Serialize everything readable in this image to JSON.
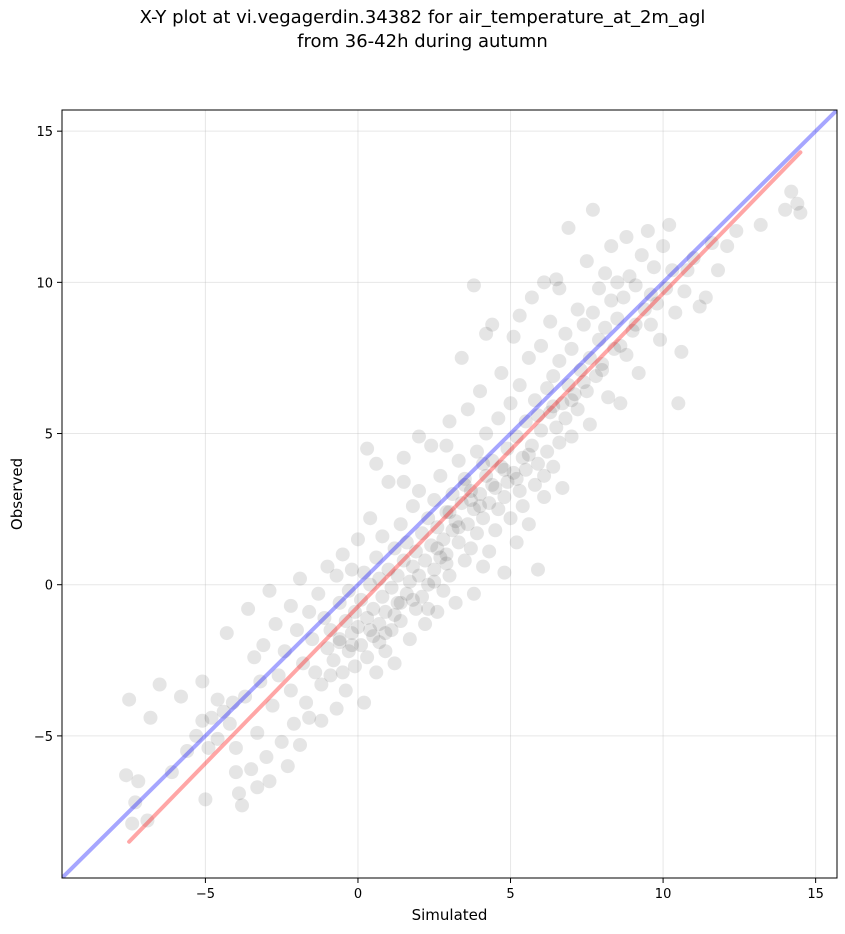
{
  "chart_data": {
    "type": "scatter",
    "title_line1": "X-Y plot at vi.vegagerdin.34382 for air_temperature_at_2m_agl",
    "title_line2": "from 36-42h during autumn",
    "xlabel": "Simulated",
    "ylabel": "Observed",
    "xlim": [
      -9.7,
      15.7
    ],
    "ylim": [
      -9.7,
      15.7
    ],
    "xticks": [
      -5,
      0,
      5,
      10,
      15
    ],
    "yticks": [
      -5,
      0,
      5,
      10,
      15
    ],
    "xtick_labels": [
      "−5",
      "0",
      "5",
      "10",
      "15"
    ],
    "ytick_labels": [
      "−5",
      "0",
      "5",
      "10",
      "15"
    ],
    "grid": true,
    "identity_line": {
      "color": "#0000ff",
      "opacity": 0.35,
      "x": [
        -9.7,
        15.7
      ],
      "y": [
        -9.7,
        15.7
      ]
    },
    "fit_line": {
      "color": "#ff0000",
      "opacity": 0.35,
      "x": [
        -7.5,
        14.5
      ],
      "y": [
        -8.5,
        14.3
      ]
    },
    "point_style": {
      "color": "#000000",
      "opacity": 0.1
    },
    "points": [
      [
        -7.6,
        -6.3
      ],
      [
        -7.5,
        -3.8
      ],
      [
        -7.2,
        -6.5
      ],
      [
        -7.3,
        -7.2
      ],
      [
        -7.4,
        -7.9
      ],
      [
        -6.9,
        -7.8
      ],
      [
        -6.8,
        -4.4
      ],
      [
        -6.5,
        -3.3
      ],
      [
        -6.1,
        -6.2
      ],
      [
        -5.8,
        -3.7
      ],
      [
        -5.6,
        -5.5
      ],
      [
        -5.3,
        -5.0
      ],
      [
        -5.1,
        -4.5
      ],
      [
        -5.1,
        -3.2
      ],
      [
        -5.0,
        -7.1
      ],
      [
        -4.9,
        -5.4
      ],
      [
        -4.8,
        -4.4
      ],
      [
        -4.6,
        -3.8
      ],
      [
        -4.6,
        -5.1
      ],
      [
        -4.4,
        -4.2
      ],
      [
        -4.3,
        -1.6
      ],
      [
        -4.2,
        -4.6
      ],
      [
        -4.1,
        -3.9
      ],
      [
        -4.0,
        -5.4
      ],
      [
        -4.0,
        -6.2
      ],
      [
        -3.9,
        -6.9
      ],
      [
        -3.8,
        -7.3
      ],
      [
        -3.7,
        -3.7
      ],
      [
        -3.6,
        -0.8
      ],
      [
        -3.5,
        -6.1
      ],
      [
        -3.4,
        -2.4
      ],
      [
        -3.3,
        -4.9
      ],
      [
        -3.3,
        -6.7
      ],
      [
        -3.2,
        -3.2
      ],
      [
        -3.1,
        -2.0
      ],
      [
        -3.0,
        -5.7
      ],
      [
        -2.9,
        -0.2
      ],
      [
        -2.9,
        -6.5
      ],
      [
        -2.8,
        -4.0
      ],
      [
        -2.7,
        -1.3
      ],
      [
        -2.6,
        -3.0
      ],
      [
        -2.5,
        -5.2
      ],
      [
        -2.4,
        -2.2
      ],
      [
        -2.3,
        -6.0
      ],
      [
        -2.2,
        -0.7
      ],
      [
        -2.2,
        -3.5
      ],
      [
        -2.1,
        -4.6
      ],
      [
        -2.0,
        -1.5
      ],
      [
        -1.9,
        0.2
      ],
      [
        -1.9,
        -5.3
      ],
      [
        -1.8,
        -2.6
      ],
      [
        -1.7,
        -3.9
      ],
      [
        -1.6,
        -0.9
      ],
      [
        -1.6,
        -4.4
      ],
      [
        -1.5,
        -1.8
      ],
      [
        -1.4,
        -2.9
      ],
      [
        -1.3,
        -0.3
      ],
      [
        -1.2,
        -3.3
      ],
      [
        -1.2,
        -4.5
      ],
      [
        -1.1,
        -1.1
      ],
      [
        -1.0,
        -2.1
      ],
      [
        -1.0,
        0.6
      ],
      [
        -0.9,
        -3.0
      ],
      [
        -0.9,
        -1.5
      ],
      [
        -0.8,
        -2.5
      ],
      [
        -0.7,
        0.3
      ],
      [
        -0.7,
        -4.1
      ],
      [
        -0.6,
        -1.8
      ],
      [
        -0.6,
        -0.6
      ],
      [
        -0.5,
        -2.9
      ],
      [
        -0.5,
        1.0
      ],
      [
        -0.4,
        -1.2
      ],
      [
        -0.4,
        -3.5
      ],
      [
        -0.3,
        -0.2
      ],
      [
        -0.3,
        -2.2
      ],
      [
        -0.2,
        -1.6
      ],
      [
        -0.2,
        0.5
      ],
      [
        -0.1,
        -2.7
      ],
      [
        -0.1,
        -0.9
      ],
      [
        0.0,
        -1.4
      ],
      [
        0.0,
        1.5
      ],
      [
        0.1,
        -2.0
      ],
      [
        0.1,
        -0.5
      ],
      [
        0.2,
        -3.9
      ],
      [
        0.2,
        0.4
      ],
      [
        0.3,
        -1.1
      ],
      [
        0.3,
        -2.4
      ],
      [
        0.4,
        0.0
      ],
      [
        0.4,
        2.2
      ],
      [
        0.5,
        -1.7
      ],
      [
        0.5,
        -0.8
      ],
      [
        0.6,
        -2.9
      ],
      [
        0.6,
        0.9
      ],
      [
        0.7,
        -1.3
      ],
      [
        0.7,
        0.2
      ],
      [
        0.8,
        -0.4
      ],
      [
        0.8,
        1.6
      ],
      [
        0.9,
        -2.2
      ],
      [
        0.9,
        -0.9
      ],
      [
        1.0,
        0.5
      ],
      [
        1.0,
        3.4
      ],
      [
        1.1,
        -1.5
      ],
      [
        1.1,
        -0.1
      ],
      [
        1.2,
        1.2
      ],
      [
        1.2,
        -2.6
      ],
      [
        1.3,
        0.3
      ],
      [
        1.3,
        -0.6
      ],
      [
        1.4,
        2.0
      ],
      [
        1.4,
        -1.2
      ],
      [
        1.5,
        0.8
      ],
      [
        1.5,
        4.2
      ],
      [
        1.6,
        -0.3
      ],
      [
        1.6,
        1.4
      ],
      [
        1.7,
        -1.8
      ],
      [
        1.7,
        0.1
      ],
      [
        1.8,
        2.6
      ],
      [
        1.8,
        0.6
      ],
      [
        1.9,
        -0.8
      ],
      [
        1.9,
        1.1
      ],
      [
        2.0,
        0.3
      ],
      [
        2.0,
        3.1
      ],
      [
        2.1,
        -0.4
      ],
      [
        2.1,
        1.7
      ],
      [
        2.2,
        0.8
      ],
      [
        2.2,
        -1.3
      ],
      [
        2.3,
        2.2
      ],
      [
        2.3,
        0.0
      ],
      [
        2.4,
        1.3
      ],
      [
        2.4,
        4.6
      ],
      [
        2.5,
        0.5
      ],
      [
        2.5,
        2.8
      ],
      [
        2.6,
        -0.9
      ],
      [
        2.6,
        1.9
      ],
      [
        2.7,
        0.9
      ],
      [
        2.7,
        3.6
      ],
      [
        2.8,
        1.5
      ],
      [
        2.8,
        -0.2
      ],
      [
        2.9,
        2.4
      ],
      [
        2.9,
        1.0
      ],
      [
        3.0,
        5.4
      ],
      [
        3.0,
        0.3
      ],
      [
        3.1,
        1.8
      ],
      [
        3.1,
        3.0
      ],
      [
        3.2,
        2.1
      ],
      [
        3.2,
        -0.6
      ],
      [
        3.3,
        4.1
      ],
      [
        3.3,
        1.4
      ],
      [
        3.4,
        2.7
      ],
      [
        3.4,
        7.5
      ],
      [
        3.5,
        0.8
      ],
      [
        3.5,
        3.5
      ],
      [
        3.6,
        2.0
      ],
      [
        3.6,
        5.8
      ],
      [
        3.7,
        1.2
      ],
      [
        3.7,
        3.1
      ],
      [
        3.8,
        2.5
      ],
      [
        3.8,
        -0.3
      ],
      [
        3.9,
        4.4
      ],
      [
        3.9,
        1.7
      ],
      [
        4.0,
        3.0
      ],
      [
        4.0,
        6.4
      ],
      [
        4.1,
        2.2
      ],
      [
        4.1,
        0.6
      ],
      [
        4.2,
        3.6
      ],
      [
        4.2,
        5.0
      ],
      [
        4.3,
        2.7
      ],
      [
        4.3,
        1.1
      ],
      [
        4.4,
        4.1
      ],
      [
        4.4,
        8.6
      ],
      [
        4.5,
        3.2
      ],
      [
        4.5,
        1.8
      ],
      [
        4.6,
        5.5
      ],
      [
        4.6,
        2.5
      ],
      [
        4.7,
        3.9
      ],
      [
        4.7,
        7.0
      ],
      [
        4.8,
        2.9
      ],
      [
        4.8,
        0.4
      ],
      [
        4.9,
        4.5
      ],
      [
        4.9,
        3.4
      ],
      [
        5.0,
        6.0
      ],
      [
        5.0,
        2.2
      ],
      [
        5.1,
        3.7
      ],
      [
        5.1,
        8.2
      ],
      [
        5.2,
        4.9
      ],
      [
        5.2,
        1.4
      ],
      [
        5.3,
        3.1
      ],
      [
        5.3,
        6.6
      ],
      [
        5.4,
        4.2
      ],
      [
        5.4,
        2.6
      ],
      [
        5.5,
        5.4
      ],
      [
        5.5,
        3.8
      ],
      [
        5.6,
        7.5
      ],
      [
        5.6,
        2.0
      ],
      [
        5.7,
        4.6
      ],
      [
        5.7,
        9.5
      ],
      [
        5.8,
        3.3
      ],
      [
        5.8,
        6.1
      ],
      [
        5.9,
        4.0
      ],
      [
        5.9,
        0.5
      ],
      [
        6.0,
        5.1
      ],
      [
        6.0,
        7.9
      ],
      [
        6.1,
        3.6
      ],
      [
        6.1,
        2.9
      ],
      [
        6.2,
        6.5
      ],
      [
        6.2,
        4.4
      ],
      [
        6.3,
        5.7
      ],
      [
        6.3,
        8.7
      ],
      [
        6.4,
        3.9
      ],
      [
        6.4,
        6.9
      ],
      [
        6.5,
        5.2
      ],
      [
        6.5,
        10.1
      ],
      [
        6.6,
        4.7
      ],
      [
        6.6,
        7.4
      ],
      [
        6.7,
        6.0
      ],
      [
        6.7,
        3.2
      ],
      [
        6.8,
        8.3
      ],
      [
        6.8,
        5.5
      ],
      [
        6.9,
        6.6
      ],
      [
        6.9,
        11.8
      ],
      [
        7.0,
        4.9
      ],
      [
        7.0,
        7.8
      ],
      [
        7.1,
        6.3
      ],
      [
        7.2,
        9.1
      ],
      [
        7.2,
        5.8
      ],
      [
        7.3,
        7.1
      ],
      [
        7.4,
        8.6
      ],
      [
        7.4,
        6.7
      ],
      [
        7.5,
        10.7
      ],
      [
        7.6,
        7.5
      ],
      [
        7.6,
        5.3
      ],
      [
        7.7,
        9.0
      ],
      [
        7.7,
        12.4
      ],
      [
        7.8,
        6.9
      ],
      [
        7.9,
        8.1
      ],
      [
        7.9,
        9.8
      ],
      [
        8.0,
        7.3
      ],
      [
        8.1,
        10.3
      ],
      [
        8.1,
        8.5
      ],
      [
        8.2,
        6.2
      ],
      [
        8.3,
        9.4
      ],
      [
        8.3,
        11.2
      ],
      [
        8.4,
        7.8
      ],
      [
        8.5,
        10.0
      ],
      [
        8.5,
        8.8
      ],
      [
        8.6,
        6.0
      ],
      [
        8.7,
        9.5
      ],
      [
        8.8,
        11.5
      ],
      [
        8.8,
        7.6
      ],
      [
        8.9,
        10.2
      ],
      [
        9.0,
        8.4
      ],
      [
        9.1,
        9.9
      ],
      [
        9.2,
        7.0
      ],
      [
        9.3,
        10.9
      ],
      [
        9.4,
        9.1
      ],
      [
        9.5,
        11.7
      ],
      [
        9.6,
        8.6
      ],
      [
        9.7,
        10.5
      ],
      [
        9.8,
        9.3
      ],
      [
        9.9,
        8.1
      ],
      [
        10.0,
        11.2
      ],
      [
        10.1,
        9.8
      ],
      [
        10.2,
        11.9
      ],
      [
        10.3,
        10.4
      ],
      [
        10.4,
        9.0
      ],
      [
        10.5,
        6.0
      ],
      [
        10.6,
        7.7
      ],
      [
        10.7,
        9.7
      ],
      [
        10.8,
        10.4
      ],
      [
        11.0,
        10.8
      ],
      [
        11.2,
        9.2
      ],
      [
        11.4,
        9.5
      ],
      [
        11.6,
        11.3
      ],
      [
        11.8,
        10.4
      ],
      [
        12.1,
        11.2
      ],
      [
        12.4,
        11.7
      ],
      [
        13.2,
        11.9
      ],
      [
        14.0,
        12.4
      ],
      [
        14.2,
        13.0
      ],
      [
        14.4,
        12.6
      ],
      [
        14.5,
        12.3
      ],
      [
        0.3,
        4.5
      ],
      [
        0.6,
        4.0
      ],
      [
        1.5,
        3.4
      ],
      [
        2.0,
        4.9
      ],
      [
        2.9,
        4.6
      ],
      [
        3.8,
        9.9
      ],
      [
        4.2,
        8.3
      ],
      [
        5.3,
        8.9
      ],
      [
        6.1,
        10.0
      ],
      [
        6.6,
        9.8
      ],
      [
        1.2,
        -1.0
      ],
      [
        1.8,
        -0.5
      ],
      [
        2.3,
        -0.8
      ],
      [
        0.7,
        -1.9
      ],
      [
        -0.2,
        -2.0
      ],
      [
        0.9,
        -1.6
      ],
      [
        2.5,
        0.1
      ],
      [
        2.9,
        0.7
      ],
      [
        3.3,
        1.9
      ],
      [
        4.0,
        2.6
      ],
      [
        4.4,
        3.3
      ],
      [
        4.8,
        3.8
      ],
      [
        5.2,
        3.5
      ],
      [
        5.6,
        4.3
      ],
      [
        3.7,
        2.8
      ],
      [
        3.0,
        2.4
      ],
      [
        2.6,
        1.2
      ],
      [
        1.4,
        -0.6
      ],
      [
        0.4,
        -1.5
      ],
      [
        -0.6,
        -1.9
      ],
      [
        5.9,
        5.6
      ],
      [
        6.4,
        5.9
      ],
      [
        7.0,
        6.1
      ],
      [
        7.5,
        6.4
      ],
      [
        8.0,
        7.1
      ],
      [
        8.6,
        7.9
      ],
      [
        9.1,
        8.6
      ],
      [
        9.6,
        9.6
      ],
      [
        4.1,
        4.0
      ],
      [
        3.5,
        3.3
      ]
    ]
  }
}
